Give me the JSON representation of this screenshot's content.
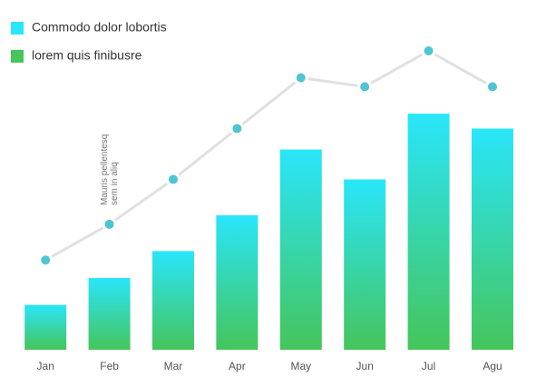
{
  "chart_data": {
    "type": "bar",
    "categories": [
      "Jan",
      "Feb",
      "Mar",
      "Apr",
      "May",
      "Jun",
      "Jul",
      "Agu"
    ],
    "series": [
      {
        "name": "Commodo dolor lobortis",
        "color": "#29e6fb",
        "type": "bar",
        "values": [
          15,
          24,
          33,
          45,
          67,
          57,
          79,
          74
        ]
      },
      {
        "name": "lorem quis finibusre",
        "color": "#45c55b",
        "type": "line",
        "line_color": "#e0e0e0",
        "dot_color": "#4fc5d1",
        "values": [
          30,
          42,
          57,
          74,
          91,
          88,
          100,
          88
        ]
      }
    ],
    "annotation": {
      "lines": [
        "Mauris pellentesq",
        "sem in aliq"
      ],
      "category": 1
    }
  }
}
